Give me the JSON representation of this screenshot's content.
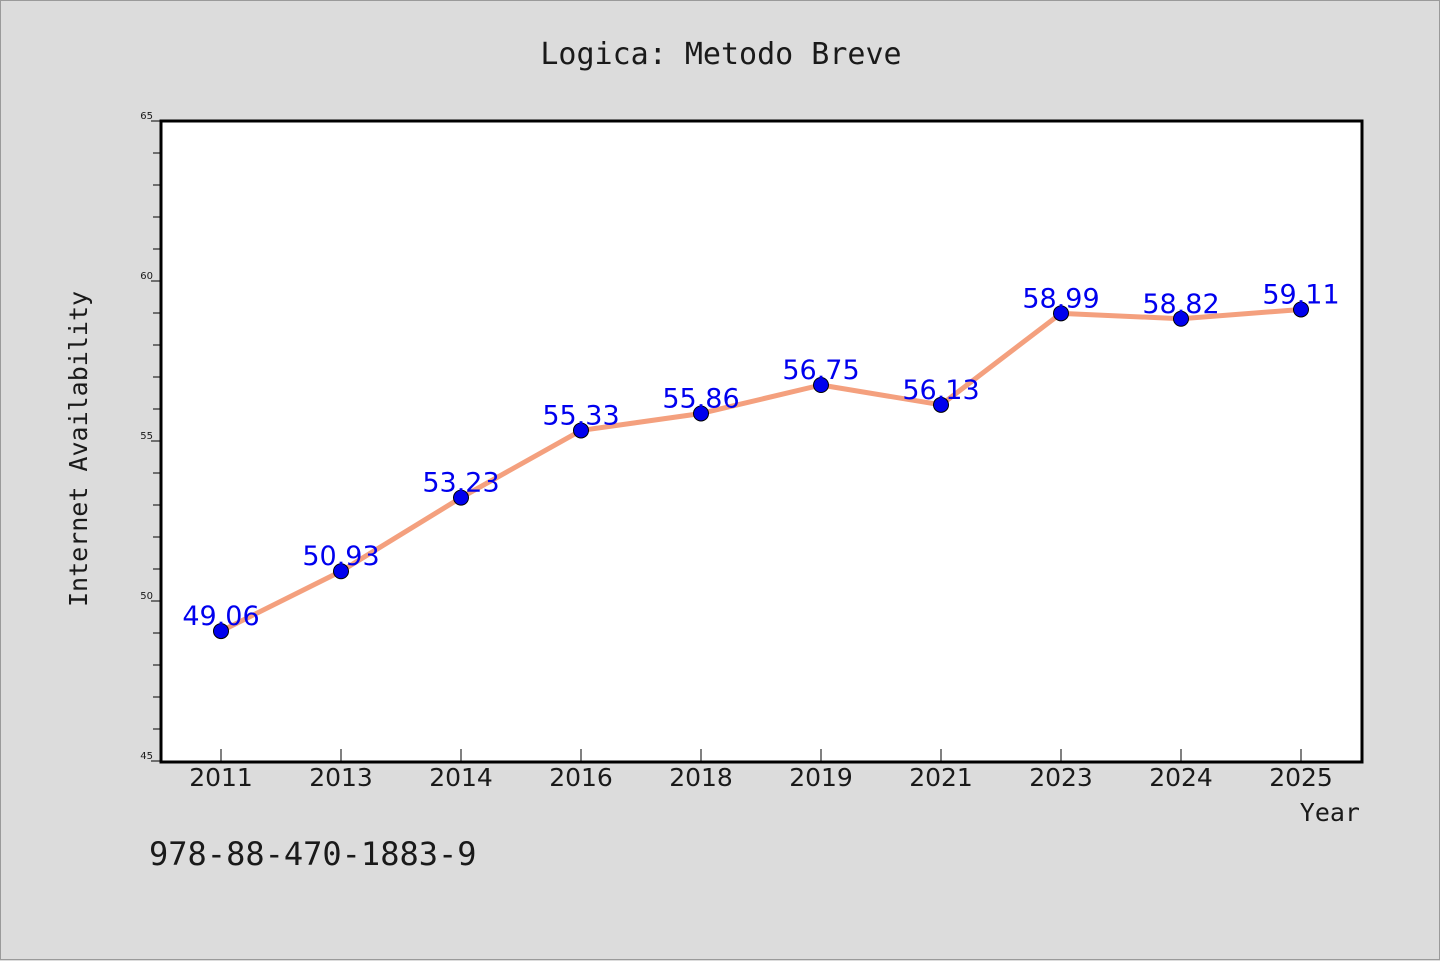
{
  "chart_data": {
    "type": "line",
    "title": "Logica: Metodo Breve",
    "xlabel": "Year",
    "ylabel": "Internet Availability",
    "categories": [
      "2011",
      "2013",
      "2014",
      "2016",
      "2018",
      "2019",
      "2021",
      "2023",
      "2024",
      "2025"
    ],
    "series": [
      {
        "values": [
          49.06,
          50.93,
          53.23,
          55.33,
          55.86,
          56.75,
          56.13,
          58.99,
          58.82,
          59.11
        ],
        "labels": [
          "49.06",
          "50.93",
          "53.23",
          "55.33",
          "55.86",
          "56.75",
          "56.13",
          "58.99",
          "58.82",
          "59.11"
        ]
      }
    ],
    "ylim": [
      45,
      65
    ],
    "yticks": [
      "45",
      "50",
      "55",
      "60",
      "65"
    ],
    "grid": false,
    "legend": "none"
  },
  "footer": {
    "isbn": "978-88-470-1883-9"
  },
  "colors": {
    "line": "#f4a07e",
    "marker": "#0000ee",
    "label": "#0000ee",
    "background": "#dcdcdc",
    "plot_background": "#ffffff"
  }
}
